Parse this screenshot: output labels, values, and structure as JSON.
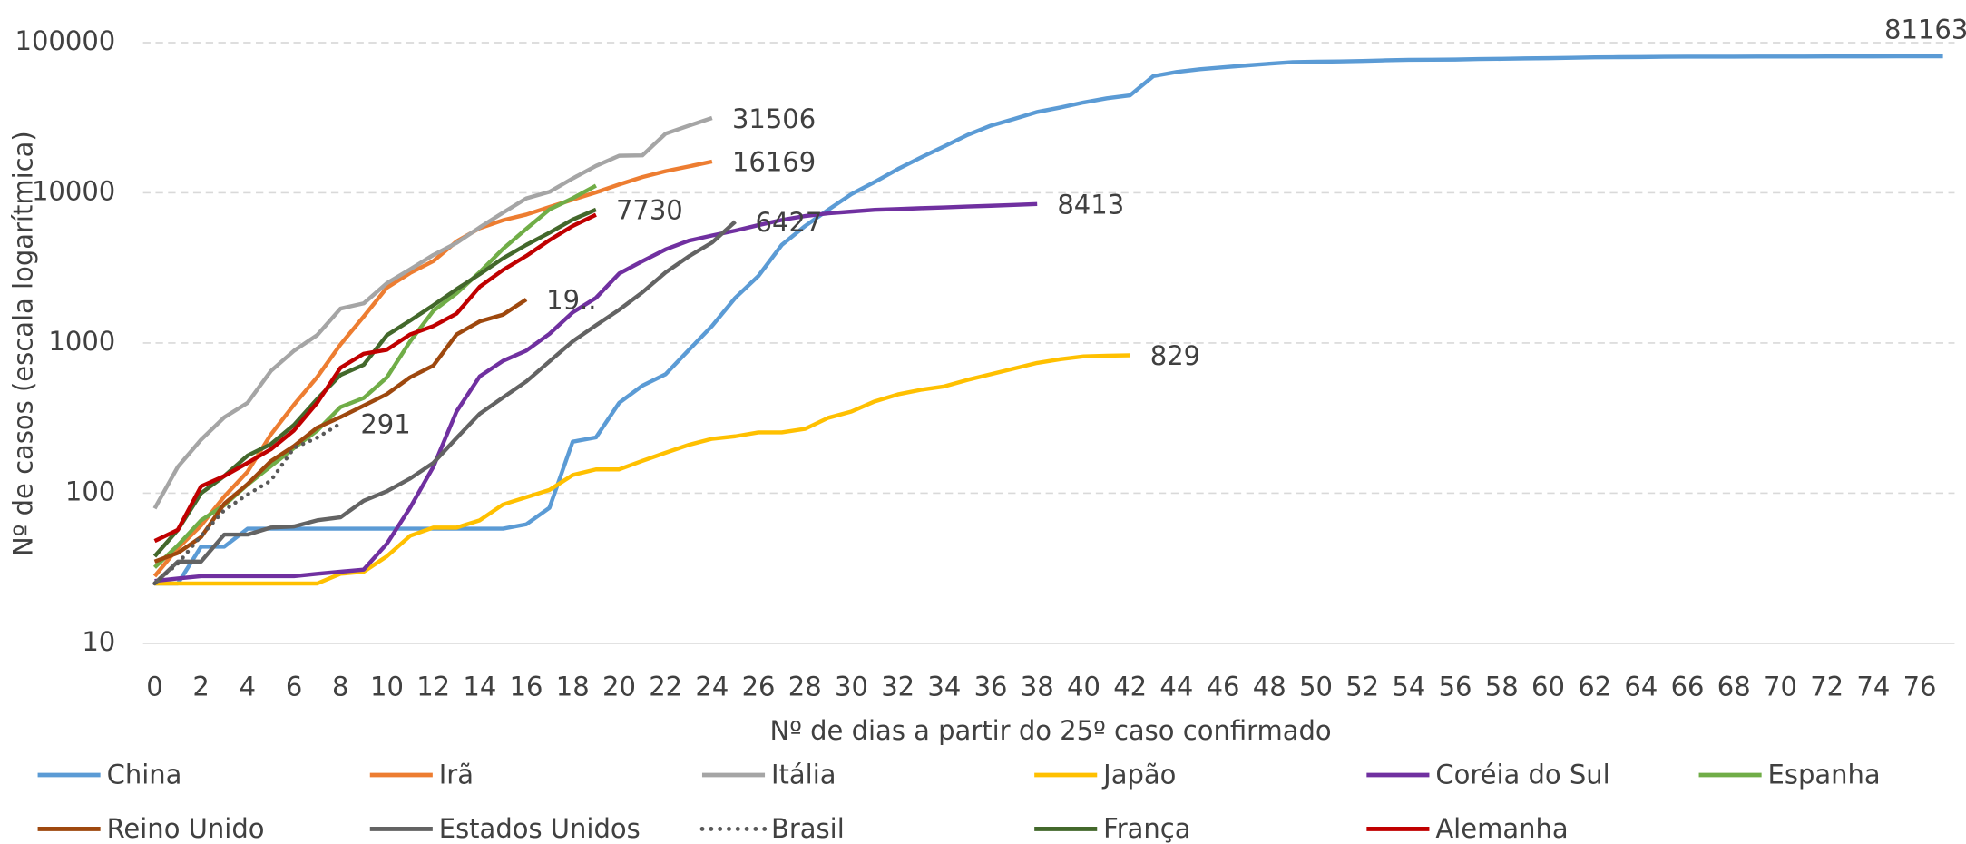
{
  "chart_data": {
    "type": "line",
    "xlabel": "Nº de dias a partir do 25º caso confirmado",
    "ylabel": "Nº de casos (escala logarítmica)",
    "yscale": "log",
    "grid": true,
    "xlim": [
      -0.5,
      77.5
    ],
    "xticks": [
      0,
      2,
      4,
      6,
      8,
      10,
      12,
      14,
      16,
      18,
      20,
      22,
      24,
      26,
      28,
      30,
      32,
      34,
      36,
      38,
      40,
      42,
      44,
      46,
      48,
      50,
      52,
      54,
      56,
      58,
      60,
      62,
      64,
      66,
      68,
      70,
      72,
      74,
      76
    ],
    "ylim": [
      10,
      100000
    ],
    "yticks": [
      10,
      100,
      1000,
      10000,
      100000
    ],
    "legend": "bottom",
    "series": [
      {
        "name": "China",
        "color": "#5b9bd5",
        "values": [
          25,
          25,
          44,
          44,
          58,
          58,
          58,
          58,
          58,
          58,
          58,
          58,
          58,
          58,
          58,
          58,
          62,
          80,
          220,
          235,
          400,
          520,
          620,
          900,
          1300,
          2000,
          2800,
          4500,
          6000,
          7700,
          9800,
          11800,
          14400,
          17200,
          20400,
          24300,
          28000,
          31000,
          34500,
          37000,
          40000,
          42600,
          44600,
          59800,
          63800,
          66500,
          68500,
          70500,
          72400,
          74200,
          74600,
          75000,
          75500,
          76300,
          76800,
          77000,
          77200,
          77700,
          78000,
          78500,
          78800,
          79300,
          79800,
          80000,
          80200,
          80400,
          80550,
          80650,
          80700,
          80750,
          80800,
          80850,
          80900,
          80950,
          81000,
          81050,
          81100,
          81163
        ],
        "value_labels": [
          null,
          null,
          null,
          null,
          null,
          null,
          null,
          null,
          null,
          null,
          null,
          null,
          null,
          null,
          null,
          null,
          null,
          null,
          null,
          null,
          null,
          null,
          null,
          null,
          null,
          null,
          null,
          null,
          null,
          null,
          null,
          null,
          null,
          null,
          null,
          null,
          null,
          null,
          null,
          null,
          null,
          null,
          null,
          null,
          null,
          null,
          null,
          null,
          null,
          null,
          null,
          null,
          null,
          null,
          null,
          null,
          null,
          null,
          null,
          null,
          null,
          null,
          null,
          null,
          null,
          null,
          null,
          null,
          null,
          null,
          null,
          null,
          null,
          null,
          null,
          null,
          null,
          "81163"
        ]
      },
      {
        "name": "Irã",
        "color": "#ed7d31",
        "values": [
          28,
          43,
          61,
          95,
          139,
          245,
          388,
          593,
          978,
          1501,
          2336,
          2922,
          3513,
          4747,
          5823,
          6566,
          7161,
          8042,
          9000,
          10075,
          11364,
          12729,
          13938,
          14991,
          16169
        ],
        "value_labels": [
          null,
          null,
          null,
          null,
          null,
          null,
          null,
          null,
          null,
          null,
          null,
          null,
          null,
          null,
          null,
          null,
          null,
          null,
          null,
          null,
          null,
          null,
          null,
          null,
          "16169"
        ]
      },
      {
        "name": "Itália",
        "color": "#a5a5a5",
        "values": [
          79,
          150,
          227,
          320,
          400,
          650,
          888,
          1128,
          1694,
          1835,
          2502,
          3089,
          3858,
          4636,
          5883,
          7375,
          9172,
          10149,
          12462,
          15113,
          17660,
          17750,
          24747,
          27980,
          31506
        ],
        "value_labels": [
          null,
          null,
          null,
          null,
          null,
          null,
          null,
          null,
          null,
          null,
          null,
          null,
          null,
          null,
          null,
          null,
          null,
          null,
          null,
          null,
          null,
          null,
          null,
          null,
          "31506"
        ]
      },
      {
        "name": "Japão",
        "color": "#ffc000",
        "values": [
          25,
          25,
          25,
          25,
          25,
          25,
          25,
          25,
          29,
          30,
          38,
          52,
          59,
          59,
          66,
          84,
          94,
          105,
          132,
          144,
          144,
          164,
          186,
          210,
          230,
          239,
          254,
          254,
          268,
          317,
          349,
          408,
          455,
          488,
          514,
          568,
          619,
          675,
          737,
          780,
          814,
          824,
          829
        ],
        "value_labels": [
          null,
          null,
          null,
          null,
          null,
          null,
          null,
          null,
          null,
          null,
          null,
          null,
          null,
          null,
          null,
          null,
          null,
          null,
          null,
          null,
          null,
          null,
          null,
          null,
          null,
          null,
          null,
          null,
          null,
          null,
          null,
          null,
          null,
          null,
          null,
          null,
          null,
          null,
          null,
          null,
          null,
          null,
          "829"
        ]
      },
      {
        "name": "Coréia do Sul",
        "color": "#7030a0",
        "values": [
          26,
          27,
          28,
          28,
          28,
          28,
          28,
          29,
          30,
          31,
          46,
          80,
          150,
          350,
          600,
          760,
          890,
          1150,
          1600,
          2000,
          2900,
          3500,
          4200,
          4800,
          5200,
          5600,
          6100,
          6600,
          7000,
          7300,
          7500,
          7700,
          7800,
          7900,
          8000,
          8100,
          8200,
          8300,
          8413
        ],
        "value_labels": [
          null,
          null,
          null,
          null,
          null,
          null,
          null,
          null,
          null,
          null,
          null,
          null,
          null,
          null,
          null,
          null,
          null,
          null,
          null,
          null,
          null,
          null,
          null,
          null,
          null,
          null,
          null,
          null,
          null,
          null,
          null,
          null,
          null,
          null,
          null,
          null,
          null,
          null,
          "8413"
        ]
      },
      {
        "name": "Espanha",
        "color": "#70ad47",
        "values": [
          32,
          45,
          66,
          83,
          114,
          151,
          200,
          261,
          374,
          430,
          589,
          1024,
          1639,
          2140,
          2965,
          4231,
          5753,
          7753,
          9191,
          11178
        ]
      },
      {
        "name": "Reino Unido",
        "color": "#9e480e",
        "values": [
          35,
          40,
          51,
          85,
          115,
          163,
          206,
          273,
          321,
          382,
          456,
          590,
          708,
          1140,
          1391,
          1543,
          1950
        ],
        "value_labels": [
          null,
          null,
          null,
          null,
          null,
          null,
          null,
          null,
          null,
          null,
          null,
          null,
          null,
          null,
          null,
          null,
          "19.."
        ]
      },
      {
        "name": "Estados Unidos",
        "color": "#636363",
        "values": [
          25,
          35,
          35,
          53,
          53,
          59,
          60,
          66,
          69,
          89,
          103,
          125,
          159,
          233,
          338,
          433,
          554,
          754,
          1025,
          1312,
          1663,
          2174,
          2951,
          3774,
          4661,
          6427
        ],
        "value_labels": [
          null,
          null,
          null,
          null,
          null,
          null,
          null,
          null,
          null,
          null,
          null,
          null,
          null,
          null,
          null,
          null,
          null,
          null,
          null,
          null,
          null,
          null,
          null,
          null,
          null,
          "6427"
        ]
      },
      {
        "name": "Brasil",
        "color": "#595959",
        "dash": "dotted",
        "values": [
          25,
          34,
          52,
          77,
          98,
          121,
          200,
          234,
          291
        ],
        "value_labels": [
          null,
          null,
          null,
          null,
          null,
          null,
          null,
          null,
          "291"
        ]
      },
      {
        "name": "França",
        "color": "#43682b",
        "values": [
          38,
          57,
          100,
          130,
          178,
          212,
          285,
          423,
          613,
          716,
          1126,
          1412,
          1784,
          2281,
          2876,
          3661,
          4499,
          5423,
          6633,
          7730
        ],
        "value_labels": [
          null,
          null,
          null,
          null,
          null,
          null,
          null,
          null,
          null,
          null,
          null,
          null,
          null,
          null,
          null,
          null,
          null,
          null,
          null,
          "7730"
        ]
      },
      {
        "name": "Alemanha",
        "color": "#c00000",
        "values": [
          48,
          57,
          111,
          130,
          159,
          196,
          262,
          400,
          684,
          847,
          902,
          1139,
          1296,
          1567,
          2369,
          3062,
          3795,
          4838,
          6012,
          7156
        ]
      }
    ]
  }
}
